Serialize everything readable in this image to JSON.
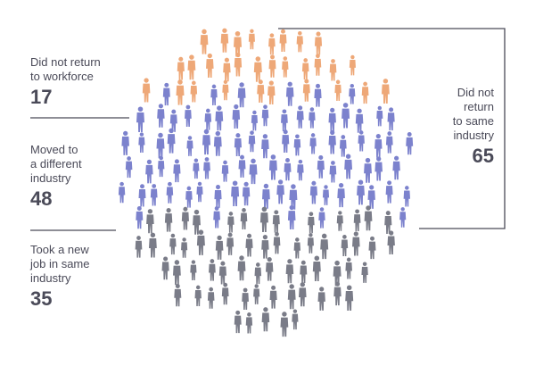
{
  "groups": [
    {
      "label": "Did not return\nto workforce",
      "value": "17",
      "count": 17,
      "color": "#eea878"
    },
    {
      "label": "Moved to\na different\nindustry",
      "value": "48",
      "count": 48,
      "color": "#7c82cd"
    },
    {
      "label": "Took a new\njob in same\nindustry",
      "value": "35",
      "count": 35,
      "color": "#7a7c88"
    }
  ],
  "bracket": {
    "label": "Did not\nreturn\nto same\nindustry",
    "value": "65"
  },
  "colors": {
    "text": "#4a4a58",
    "line": "#4a4a58"
  },
  "figure_icon": "person-silhouette-icon"
}
